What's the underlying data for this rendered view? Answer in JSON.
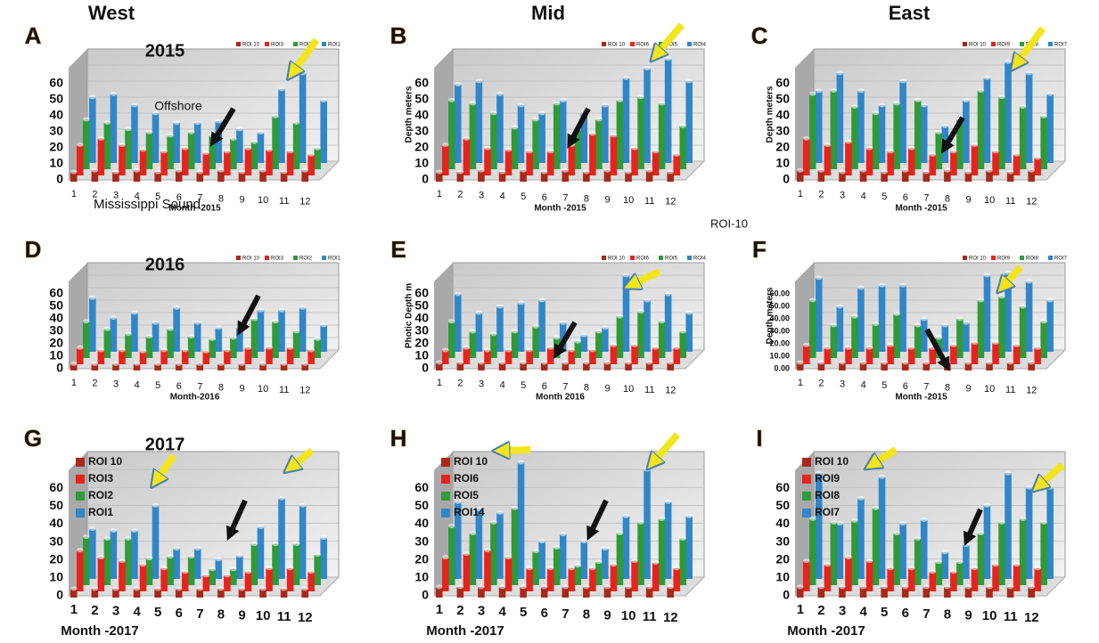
{
  "chart_data": [
    {
      "type": "bar",
      "panel": "A",
      "title": "West",
      "year_label": "2015",
      "xlabel": "Month -2015",
      "legend": "top-right",
      "annotations": [
        "Offshore",
        "Mississippi Sound"
      ],
      "categories": [
        "1",
        "2",
        "3",
        "4",
        "5",
        "6",
        "7",
        "8",
        "9",
        "10",
        "11",
        "12"
      ],
      "ylim": [
        0,
        70
      ],
      "yticks": [
        0,
        10,
        20,
        30,
        40,
        50,
        60
      ],
      "series": [
        {
          "name": "ROI 10",
          "color": "#a8281c",
          "values": [
            5,
            6,
            5,
            6,
            5,
            6,
            5,
            6,
            5,
            6,
            5,
            6
          ]
        },
        {
          "name": "ROI3",
          "color": "#e8231b",
          "values": [
            18,
            22,
            18,
            15,
            14,
            16,
            13,
            14,
            16,
            15,
            14,
            12
          ]
        },
        {
          "name": "ROI2",
          "color": "#2e9a3a",
          "values": [
            30,
            28,
            24,
            22,
            20,
            22,
            20,
            18,
            16,
            32,
            28,
            12
          ]
        },
        {
          "name": "ROI1",
          "color": "#2f86c8",
          "values": [
            40,
            42,
            35,
            30,
            24,
            24,
            25,
            20,
            18,
            45,
            55,
            38
          ]
        }
      ]
    },
    {
      "type": "bar",
      "panel": "B",
      "title": "Mid",
      "ylabel": "Depth meters",
      "xlabel": "Month -2015",
      "legend": "top-right",
      "annotations": [
        "ROI-10"
      ],
      "categories": [
        "1",
        "2",
        "3",
        "4",
        "5",
        "6",
        "7",
        "8",
        "9",
        "10",
        "11",
        "12"
      ],
      "ylim": [
        0,
        70
      ],
      "yticks": [
        0,
        10,
        20,
        30,
        40,
        50,
        60
      ],
      "series": [
        {
          "name": "ROI 10",
          "color": "#a8281c",
          "values": [
            5,
            5,
            6,
            5,
            6,
            5,
            6,
            5,
            6,
            5,
            6,
            5
          ]
        },
        {
          "name": "ROI6",
          "color": "#e8231b",
          "values": [
            18,
            22,
            16,
            15,
            14,
            14,
            18,
            25,
            24,
            16,
            14,
            12
          ]
        },
        {
          "name": "ROI5",
          "color": "#2e9a3a",
          "values": [
            42,
            40,
            34,
            25,
            30,
            40,
            24,
            30,
            42,
            44,
            40,
            26
          ]
        },
        {
          "name": "ROI4",
          "color": "#2f86c8",
          "values": [
            48,
            50,
            42,
            35,
            30,
            38,
            30,
            35,
            52,
            58,
            64,
            50
          ]
        }
      ]
    },
    {
      "type": "bar",
      "panel": "C",
      "title": "East",
      "ylabel": "Depth meters",
      "xlabel": "Month -2015",
      "legend": "top-right",
      "categories": [
        "1",
        "2",
        "3",
        "4",
        "5",
        "6",
        "7",
        "8",
        "9",
        "10",
        "11",
        "12"
      ],
      "ylim": [
        0,
        70
      ],
      "yticks": [
        0,
        10,
        20,
        30,
        40,
        50,
        60
      ],
      "series": [
        {
          "name": "ROI 10",
          "color": "#a8281c",
          "values": [
            6,
            6,
            5,
            6,
            5,
            6,
            5,
            6,
            5,
            6,
            5,
            6
          ]
        },
        {
          "name": "ROI9",
          "color": "#e8231b",
          "values": [
            22,
            18,
            20,
            16,
            14,
            16,
            12,
            14,
            18,
            14,
            12,
            10
          ]
        },
        {
          "name": "ROI8",
          "color": "#2e9a3a",
          "values": [
            46,
            48,
            38,
            34,
            40,
            42,
            22,
            30,
            48,
            44,
            38,
            32
          ]
        },
        {
          "name": "ROI7",
          "color": "#2f86c8",
          "values": [
            44,
            55,
            44,
            35,
            50,
            35,
            22,
            38,
            52,
            62,
            55,
            42
          ]
        }
      ]
    },
    {
      "type": "bar",
      "panel": "D",
      "year_label": "2016",
      "xlabel": "Month-2016",
      "legend": "top-right",
      "categories": [
        "1",
        "2",
        "3",
        "4",
        "5",
        "6",
        "7",
        "8",
        "9",
        "10",
        "11",
        "12"
      ],
      "ylim": [
        0,
        70
      ],
      "yticks": [
        0,
        10,
        20,
        30,
        40,
        50,
        60
      ],
      "series": [
        {
          "name": "ROI 10",
          "color": "#a8281c",
          "values": [
            4,
            4,
            4,
            4,
            4,
            4,
            4,
            4,
            4,
            4,
            4,
            4
          ]
        },
        {
          "name": "ROI3",
          "color": "#e8231b",
          "values": [
            12,
            10,
            10,
            9,
            10,
            10,
            9,
            10,
            12,
            12,
            12,
            10
          ]
        },
        {
          "name": "ROI2",
          "color": "#2e9a3a",
          "values": [
            28,
            22,
            18,
            16,
            22,
            16,
            14,
            15,
            30,
            28,
            20,
            14
          ]
        },
        {
          "name": "ROI1",
          "color": "#2f86c8",
          "values": [
            42,
            26,
            30,
            22,
            34,
            22,
            18,
            18,
            32,
            32,
            34,
            20
          ]
        }
      ]
    },
    {
      "type": "bar",
      "panel": "E",
      "ylabel": "Photic Depth m",
      "xlabel": "Month 2016",
      "legend": "top-right",
      "categories": [
        "1",
        "2",
        "3",
        "4",
        "5",
        "6",
        "7",
        "8",
        "9",
        "10",
        "11",
        "12"
      ],
      "ylim": [
        0,
        70
      ],
      "yticks": [
        0,
        10,
        20,
        30,
        40,
        50,
        60
      ],
      "series": [
        {
          "name": "ROI 10",
          "color": "#a8281c",
          "values": [
            5,
            5,
            5,
            5,
            5,
            5,
            5,
            5,
            5,
            5,
            5,
            5
          ]
        },
        {
          "name": "ROI6",
          "color": "#e8231b",
          "values": [
            10,
            12,
            10,
            10,
            10,
            12,
            10,
            10,
            14,
            14,
            12,
            12
          ]
        },
        {
          "name": "ROI5",
          "color": "#2e9a3a",
          "values": [
            28,
            20,
            18,
            20,
            24,
            15,
            12,
            20,
            32,
            36,
            28,
            20
          ]
        },
        {
          "name": "ROI4",
          "color": "#2f86c8",
          "values": [
            45,
            30,
            35,
            38,
            40,
            22,
            12,
            18,
            60,
            40,
            45,
            30
          ]
        }
      ]
    },
    {
      "type": "bar",
      "panel": "F",
      "ylabel": "Depth meters",
      "xlabel": "Month -2015",
      "legend": "top-right",
      "categories": [
        "1",
        "2",
        "3",
        "4",
        "5",
        "6",
        "7",
        "8",
        "9",
        "10",
        "11",
        "12"
      ],
      "ylim": [
        0,
        70
      ],
      "yticks": [
        {
          "value": 0,
          "label": "0.00"
        },
        {
          "value": 10,
          "label": "10.00"
        },
        {
          "value": 20,
          "label": "20.00"
        },
        {
          "value": 30,
          "label": "30.00"
        },
        {
          "value": 40,
          "label": "40.00"
        },
        {
          "value": 50,
          "label": "50.00"
        },
        {
          "value": 60,
          "label": "60.00"
        }
      ],
      "series": [
        {
          "name": "ROI 10",
          "color": "#a8281c",
          "values": [
            5,
            5,
            5,
            5,
            5,
            5,
            5,
            5,
            5,
            5,
            5,
            5
          ]
        },
        {
          "name": "ROI9",
          "color": "#e8231b",
          "values": [
            14,
            12,
            12,
            12,
            14,
            12,
            12,
            14,
            16,
            16,
            14,
            12
          ]
        },
        {
          "name": "ROI8",
          "color": "#2e9a3a",
          "values": [
            45,
            25,
            32,
            26,
            34,
            25,
            15,
            30,
            45,
            48,
            40,
            28
          ]
        },
        {
          "name": "ROI7",
          "color": "#2f86c8",
          "values": [
            58,
            35,
            50,
            52,
            52,
            25,
            20,
            22,
            60,
            62,
            55,
            40
          ]
        }
      ]
    },
    {
      "type": "bar",
      "panel": "G",
      "year_label": "2017",
      "xlabel": "Month -2017",
      "legend": "top-left",
      "categories": [
        "1",
        "2",
        "3",
        "4",
        "5",
        "6",
        "7",
        "8",
        "9",
        "10",
        "11",
        "12"
      ],
      "ylim": [
        0,
        70
      ],
      "yticks": [
        0,
        10,
        20,
        30,
        40,
        50,
        60
      ],
      "series": [
        {
          "name": "ROI 10",
          "color": "#a8281c",
          "values": [
            4,
            4,
            4,
            4,
            4,
            4,
            4,
            4,
            4,
            4,
            4,
            4
          ]
        },
        {
          "name": "ROI3",
          "color": "#e8231b",
          "values": [
            22,
            18,
            16,
            14,
            12,
            10,
            8,
            8,
            10,
            12,
            12,
            10
          ]
        },
        {
          "name": "ROI2",
          "color": "#2e9a3a",
          "values": [
            26,
            25,
            25,
            14,
            15,
            15,
            8,
            8,
            22,
            22,
            22,
            16
          ]
        },
        {
          "name": "ROI1",
          "color": "#2f86c8",
          "values": [
            27,
            26,
            26,
            40,
            16,
            16,
            10,
            12,
            28,
            44,
            40,
            22
          ]
        }
      ]
    },
    {
      "type": "bar",
      "panel": "H",
      "xlabel": "Month -2017",
      "legend": "top-left",
      "categories": [
        "1",
        "2",
        "3",
        "4",
        "5",
        "6",
        "7",
        "8",
        "9",
        "10",
        "11",
        "12"
      ],
      "ylim": [
        0,
        70
      ],
      "yticks": [
        0,
        10,
        20,
        30,
        40,
        50,
        60
      ],
      "series": [
        {
          "name": "ROI 10",
          "color": "#a8281c",
          "values": [
            5,
            5,
            5,
            5,
            5,
            5,
            5,
            5,
            5,
            5,
            5,
            5
          ]
        },
        {
          "name": "ROI6",
          "color": "#e8231b",
          "values": [
            18,
            20,
            22,
            18,
            12,
            12,
            12,
            12,
            14,
            16,
            15,
            12
          ]
        },
        {
          "name": "ROI5",
          "color": "#2e9a3a",
          "values": [
            32,
            28,
            34,
            42,
            18,
            20,
            10,
            12,
            28,
            34,
            36,
            25
          ]
        },
        {
          "name": "ROI14",
          "color": "#2f86c8",
          "values": [
            42,
            38,
            36,
            64,
            20,
            24,
            20,
            16,
            34,
            60,
            42,
            34
          ]
        }
      ]
    },
    {
      "type": "bar",
      "panel": "I",
      "xlabel": "Month -2017",
      "legend": "top-left",
      "categories": [
        "1",
        "2",
        "3",
        "4",
        "5",
        "6",
        "7",
        "8",
        "9",
        "10",
        "11",
        "12"
      ],
      "ylim": [
        0,
        70
      ],
      "yticks": [
        0,
        10,
        20,
        30,
        40,
        50,
        60
      ],
      "series": [
        {
          "name": "ROI 10",
          "color": "#a8281c",
          "values": [
            5,
            5,
            5,
            5,
            5,
            5,
            5,
            5,
            5,
            5,
            5,
            5
          ]
        },
        {
          "name": "ROI9",
          "color": "#e8231b",
          "values": [
            16,
            14,
            18,
            16,
            12,
            12,
            10,
            10,
            12,
            14,
            14,
            12
          ]
        },
        {
          "name": "ROI8",
          "color": "#2e9a3a",
          "values": [
            36,
            34,
            35,
            42,
            28,
            25,
            12,
            12,
            28,
            34,
            36,
            34
          ]
        },
        {
          "name": "ROI7",
          "color": "#2f86c8",
          "values": [
            58,
            30,
            44,
            56,
            30,
            32,
            14,
            18,
            40,
            58,
            50,
            50
          ]
        }
      ]
    }
  ]
}
